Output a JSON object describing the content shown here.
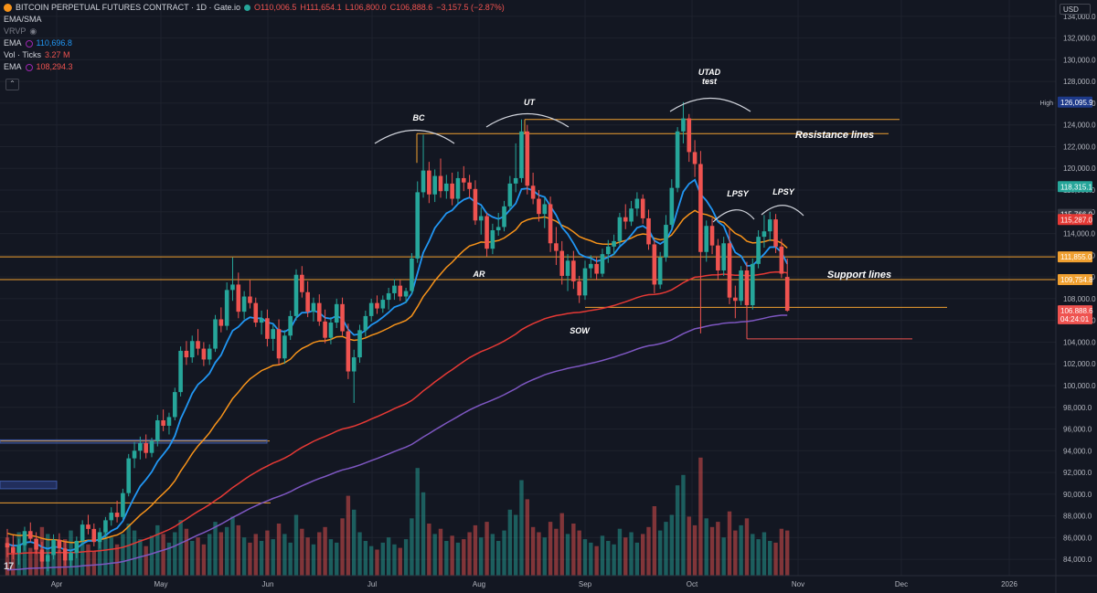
{
  "header": {
    "title": "BITCOIN PERPETUAL FUTURES CONTRACT · 1D · Gate.io",
    "ohlc_o": "O110,006.5",
    "ohlc_h": "H111,654.1",
    "ohlc_l": "L106,800.0",
    "ohlc_c": "C106,888.6",
    "change": "−3,157.5 (−2.87%)",
    "indicators": {
      "ema_sma": "EMA/SMA",
      "vrvp": "VRVP",
      "ema1_label": "EMA",
      "ema1_value": "110,696.8",
      "vol_label": "Vol · Ticks",
      "vol_value": "3.27 M",
      "ema2_label": "EMA",
      "ema2_value": "108,294.3"
    },
    "currency": "USD"
  },
  "colors": {
    "background": "#131722",
    "up": "#26a69a",
    "down": "#ef5350",
    "ema_fast": "#2196f3",
    "ema_mid": "#f7931a",
    "ema_slow": "#e53935",
    "sma_long": "#7e57c2",
    "level": "#f0a030"
  },
  "chart_data": {
    "type": "candlestick",
    "x_ticks": [
      "Apr",
      "May",
      "Jun",
      "Jul",
      "Aug",
      "Sep",
      "Oct",
      "Nov",
      "Dec",
      "2026"
    ],
    "y_ticks": [
      "84,000.0",
      "86,000.0",
      "88,000.0",
      "90,000.0",
      "92,000.0",
      "94,000.0",
      "96,000.0",
      "98,000.0",
      "100,000.0",
      "102,000.0",
      "104,000.0",
      "106,000.0",
      "108,000.0",
      "110,000.0",
      "112,000.0",
      "114,000.0",
      "116,000.0",
      "118,000.0",
      "120,000.0",
      "122,000.0",
      "124,000.0",
      "126,000.0",
      "128,000.0",
      "130,000.0",
      "132,000.0",
      "134,000.0"
    ],
    "ylim": [
      82500,
      135500
    ],
    "price_tags": [
      {
        "label": "High",
        "value": "126,095.9",
        "y": 126095.9,
        "color": "#1e3a8a"
      },
      {
        "value": "118,315.1",
        "y": 118315.1,
        "color": "#26a69a"
      },
      {
        "value": "115,766.0",
        "y": 115766,
        "color": "#363a45"
      },
      {
        "value": "115,287.0",
        "y": 115287,
        "color": "#e53935"
      },
      {
        "value": "111,855.0",
        "y": 111855,
        "color": "#f0a030"
      },
      {
        "value": "109,754.8",
        "y": 109754.8,
        "color": "#f0a030"
      },
      {
        "value": "106,888.6",
        "y": 106888.6,
        "color": "#ef5350"
      },
      {
        "value": "04:24:01",
        "y": 106150,
        "color": "#ef5350"
      }
    ],
    "annotations": [
      "BC",
      "UT",
      "UTAD",
      "test",
      "AR",
      "SOW",
      "LPSY",
      "LPSY",
      "Resistance lines",
      "Support lines"
    ],
    "candles_ohlc": [
      [
        85500,
        86800,
        84200,
        85100
      ],
      [
        85100,
        86200,
        84000,
        84600
      ],
      [
        84600,
        85900,
        83500,
        85300
      ],
      [
        85300,
        87000,
        84800,
        86600
      ],
      [
        86600,
        87400,
        85600,
        85900
      ],
      [
        85900,
        86500,
        84500,
        84900
      ],
      [
        84900,
        85600,
        83200,
        83800
      ],
      [
        83800,
        84700,
        82900,
        84400
      ],
      [
        84400,
        86300,
        84000,
        85800
      ],
      [
        85800,
        86400,
        84600,
        85000
      ],
      [
        85000,
        85700,
        83400,
        83900
      ],
      [
        83900,
        84800,
        83300,
        84600
      ],
      [
        84600,
        86100,
        84100,
        85700
      ],
      [
        85700,
        87600,
        85300,
        87200
      ],
      [
        87200,
        88100,
        86300,
        86800
      ],
      [
        86800,
        87300,
        85200,
        85600
      ],
      [
        85600,
        86900,
        85000,
        86500
      ],
      [
        86500,
        87900,
        86000,
        87600
      ],
      [
        87600,
        88800,
        87100,
        88300
      ],
      [
        88300,
        89400,
        87400,
        87900
      ],
      [
        87900,
        90500,
        87700,
        90100
      ],
      [
        90100,
        93700,
        89800,
        93300
      ],
      [
        93300,
        94800,
        92400,
        94000
      ],
      [
        94000,
        95300,
        93200,
        94700
      ],
      [
        94700,
        95500,
        93300,
        93800
      ],
      [
        93800,
        95200,
        93400,
        94900
      ],
      [
        94900,
        97300,
        94400,
        96800
      ],
      [
        96800,
        97800,
        95800,
        96300
      ],
      [
        96300,
        97500,
        95500,
        97100
      ],
      [
        97100,
        99800,
        96800,
        99400
      ],
      [
        99400,
        103600,
        99000,
        103200
      ],
      [
        103200,
        104100,
        101900,
        102600
      ],
      [
        102600,
        104600,
        102100,
        104100
      ],
      [
        104100,
        105200,
        102800,
        103400
      ],
      [
        103400,
        104000,
        101800,
        102400
      ],
      [
        102400,
        103800,
        101900,
        103400
      ],
      [
        103400,
        106500,
        103100,
        106100
      ],
      [
        106100,
        107200,
        104900,
        105500
      ],
      [
        105500,
        109500,
        105100,
        108800
      ],
      [
        108800,
        111800,
        107800,
        109300
      ],
      [
        109300,
        110400,
        106200,
        106800
      ],
      [
        106800,
        108700,
        106100,
        108200
      ],
      [
        108200,
        109700,
        107100,
        107600
      ],
      [
        107600,
        108100,
        105400,
        105800
      ],
      [
        105800,
        106900,
        104700,
        106200
      ],
      [
        106200,
        107000,
        103600,
        104300
      ],
      [
        104300,
        105600,
        103200,
        105200
      ],
      [
        105200,
        106100,
        101900,
        102500
      ],
      [
        102500,
        105100,
        102000,
        104600
      ],
      [
        104600,
        106900,
        104200,
        106400
      ],
      [
        106400,
        110700,
        106000,
        110200
      ],
      [
        110200,
        111000,
        108100,
        108600
      ],
      [
        108600,
        109600,
        106300,
        106800
      ],
      [
        106800,
        108100,
        105900,
        107600
      ],
      [
        107600,
        108400,
        105500,
        105900
      ],
      [
        105900,
        107000,
        103900,
        104400
      ],
      [
        104400,
        106300,
        103800,
        105800
      ],
      [
        105800,
        108000,
        105300,
        107500
      ],
      [
        107500,
        108100,
        104600,
        105000
      ],
      [
        105000,
        105700,
        100600,
        101300
      ],
      [
        101300,
        103300,
        98400,
        102600
      ],
      [
        102600,
        105600,
        102100,
        105100
      ],
      [
        105100,
        106900,
        104500,
        106400
      ],
      [
        106400,
        108000,
        105900,
        107600
      ],
      [
        107600,
        108300,
        106600,
        107100
      ],
      [
        107100,
        108300,
        106700,
        107900
      ],
      [
        107900,
        109000,
        107000,
        108500
      ],
      [
        108500,
        109800,
        107900,
        109200
      ],
      [
        109200,
        109700,
        107800,
        108200
      ],
      [
        108200,
        109000,
        107600,
        108700
      ],
      [
        108700,
        112200,
        108400,
        111700
      ],
      [
        111700,
        118800,
        111300,
        117800
      ],
      [
        117800,
        123100,
        117300,
        119800
      ],
      [
        119800,
        120600,
        116800,
        117600
      ],
      [
        117600,
        119900,
        116900,
        119300
      ],
      [
        119300,
        120900,
        117300,
        117900
      ],
      [
        117900,
        119400,
        117200,
        118600
      ],
      [
        118600,
        119600,
        116600,
        117200
      ],
      [
        117200,
        119700,
        116800,
        119100
      ],
      [
        119100,
        120200,
        117900,
        118700
      ],
      [
        118700,
        119400,
        117300,
        118100
      ],
      [
        118100,
        118900,
        114800,
        115200
      ],
      [
        115200,
        116400,
        113900,
        115600
      ],
      [
        115600,
        115900,
        111900,
        112600
      ],
      [
        112600,
        114900,
        112100,
        114300
      ],
      [
        114300,
        115900,
        113800,
        114600
      ],
      [
        114600,
        117000,
        114200,
        116500
      ],
      [
        116500,
        119300,
        116100,
        118600
      ],
      [
        118600,
        122300,
        117800,
        119100
      ],
      [
        119100,
        124500,
        118700,
        123400
      ],
      [
        123400,
        124000,
        117600,
        118400
      ],
      [
        118400,
        119600,
        116700,
        117200
      ],
      [
        117200,
        118000,
        115100,
        115800
      ],
      [
        115800,
        117300,
        114500,
        116700
      ],
      [
        116700,
        117400,
        112300,
        113100
      ],
      [
        113100,
        114600,
        111100,
        112400
      ],
      [
        112400,
        113300,
        109300,
        110100
      ],
      [
        110100,
        112100,
        108700,
        111500
      ],
      [
        111500,
        112400,
        108900,
        109600
      ],
      [
        109600,
        110100,
        107600,
        108300
      ],
      [
        108300,
        111500,
        107900,
        110800
      ],
      [
        110800,
        112000,
        109900,
        111200
      ],
      [
        111200,
        111800,
        109700,
        110300
      ],
      [
        110300,
        112600,
        110000,
        112100
      ],
      [
        112100,
        113400,
        111300,
        112800
      ],
      [
        112800,
        113900,
        112000,
        113300
      ],
      [
        113300,
        115900,
        112900,
        115500
      ],
      [
        115500,
        116700,
        114400,
        115100
      ],
      [
        115100,
        117000,
        114700,
        116300
      ],
      [
        116300,
        117800,
        115600,
        117200
      ],
      [
        117200,
        117600,
        114900,
        115400
      ],
      [
        115400,
        116200,
        112500,
        113000
      ],
      [
        113000,
        113400,
        108500,
        109300
      ],
      [
        109300,
        112300,
        108900,
        111800
      ],
      [
        111800,
        115700,
        111400,
        114800
      ],
      [
        114800,
        119000,
        114400,
        118200
      ],
      [
        118200,
        123800,
        117800,
        123400
      ],
      [
        123400,
        126100,
        122300,
        124600
      ],
      [
        124600,
        125000,
        120600,
        121500
      ],
      [
        121500,
        122600,
        119200,
        120400
      ],
      [
        120400,
        121600,
        104800,
        112300
      ],
      [
        112300,
        115200,
        111400,
        114700
      ],
      [
        114700,
        115400,
        112100,
        112900
      ],
      [
        112900,
        113500,
        109700,
        110600
      ],
      [
        110600,
        113700,
        110100,
        113100
      ],
      [
        113100,
        114400,
        107500,
        108100
      ],
      [
        108100,
        109200,
        106200,
        107800
      ],
      [
        107800,
        111000,
        107400,
        110600
      ],
      [
        110600,
        111400,
        106800,
        107400
      ],
      [
        107400,
        111700,
        107000,
        111200
      ],
      [
        111200,
        114300,
        110800,
        113700
      ],
      [
        113700,
        115700,
        112700,
        114200
      ],
      [
        114200,
        116000,
        113300,
        115300
      ],
      [
        115300,
        115800,
        112200,
        112800
      ],
      [
        112800,
        113500,
        109900,
        110300
      ],
      [
        110000,
        111700,
        106800,
        106900
      ]
    ],
    "volumes": [
      22,
      18,
      25,
      20,
      16,
      19,
      28,
      24,
      17,
      15,
      21,
      26,
      19,
      23,
      18,
      14,
      20,
      27,
      22,
      18,
      24,
      30,
      26,
      21,
      17,
      23,
      29,
      24,
      19,
      25,
      32,
      27,
      20,
      22,
      18,
      24,
      31,
      25,
      28,
      34,
      29,
      22,
      19,
      24,
      20,
      26,
      21,
      30,
      24,
      19,
      35,
      27,
      22,
      18,
      25,
      28,
      21,
      19,
      33,
      46,
      38,
      25,
      20,
      17,
      15,
      19,
      22,
      18,
      16,
      21,
      33,
      62,
      48,
      30,
      24,
      27,
      20,
      23,
      19,
      21,
      25,
      29,
      22,
      31,
      24,
      20,
      26,
      38,
      35,
      55,
      44,
      28,
      25,
      22,
      31,
      27,
      36,
      24,
      30,
      26,
      21,
      19,
      17,
      23,
      20,
      18,
      27,
      22,
      25,
      19,
      24,
      28,
      40,
      26,
      31,
      35,
      52,
      58,
      34,
      29,
      68,
      33,
      28,
      31,
      22,
      37,
      26,
      29,
      33,
      24,
      21,
      25,
      20,
      19,
      27,
      26
    ],
    "ema_fast_color": "#2196f3",
    "ema_mid_color": "#f7931a",
    "ema_slow_color": "#e53935",
    "sma_long_color": "#7e57c2"
  }
}
